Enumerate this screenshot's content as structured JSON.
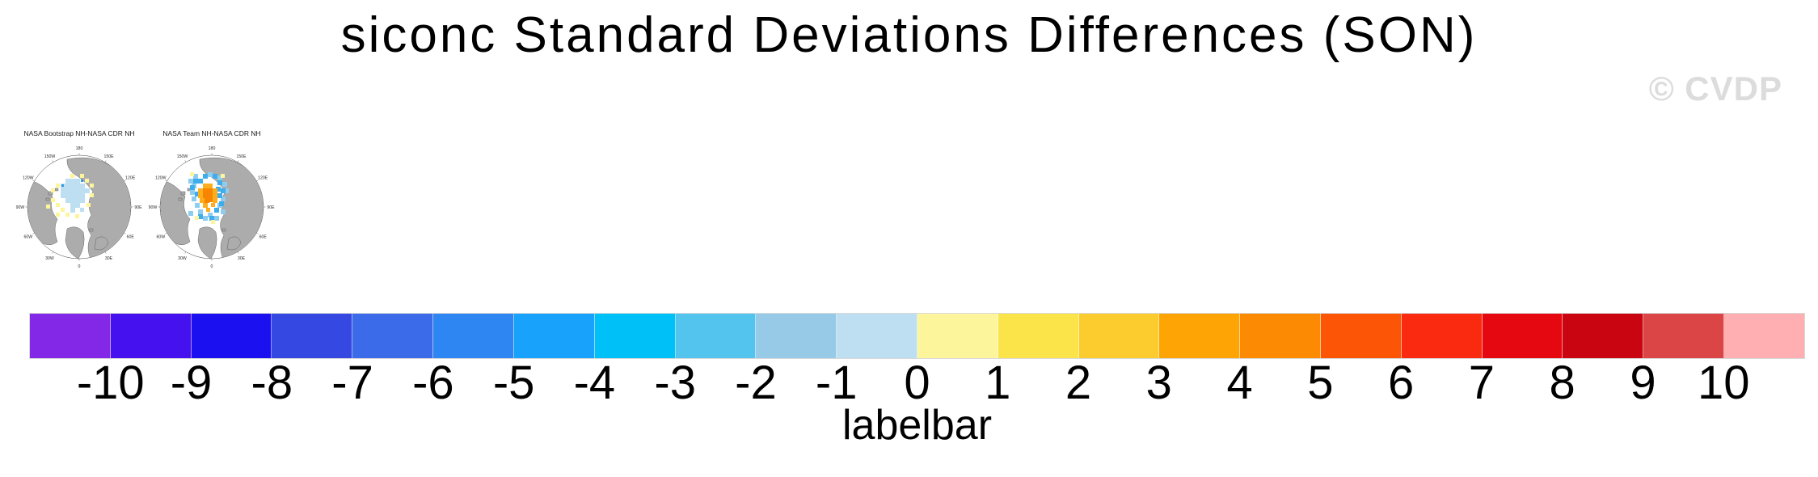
{
  "title": "siconc Standard Deviations Differences (SON)",
  "watermark": "© CVDP",
  "maps": {
    "panels": [
      {
        "title": "NASA Bootstrap NH-NASA CDR NH"
      },
      {
        "title": "NASA Team NH-NASA CDR NH"
      }
    ],
    "lon_labels": [
      "180",
      "150E",
      "120E",
      "90E",
      "60E",
      "30E",
      "0",
      "30W",
      "60W",
      "90W",
      "120W",
      "150W"
    ],
    "land_color": "#acacac",
    "ocean_color": "#ffffff"
  },
  "colorbar": {
    "axis_label": "labelbar",
    "tick_labels": [
      "-10",
      "-9",
      "-8",
      "-7",
      "-6",
      "-5",
      "-4",
      "-3",
      "-2",
      "-1",
      "0",
      "1",
      "2",
      "3",
      "4",
      "5",
      "6",
      "7",
      "8",
      "9",
      "10"
    ],
    "colors": [
      "#8428E8",
      "#4611EF",
      "#1A10F0",
      "#3548E2",
      "#3B6BE8",
      "#2E86F2",
      "#18A2FB",
      "#00C0F8",
      "#52C4EE",
      "#96CAE6",
      "#BEDFF2",
      "#FCF59C",
      "#FBE34A",
      "#FCCB2D",
      "#FFA405",
      "#FC8A02",
      "#FB5505",
      "#F92A10",
      "#E60810",
      "#C80510",
      "#DC4545",
      "#FFAEB2"
    ]
  },
  "chart_data": {
    "type": "heatmap",
    "title": "siconc Standard Deviations Differences (SON)",
    "panels": [
      "NASA Bootstrap NH-NASA CDR NH",
      "NASA Team NH-NASA CDR NH"
    ],
    "projection": "northern hemisphere polar stereographic",
    "colorbar_label": "labelbar",
    "colorbar_levels": [
      -10,
      -9,
      -8,
      -7,
      -6,
      -5,
      -4,
      -3,
      -2,
      -1,
      0,
      1,
      2,
      3,
      4,
      5,
      6,
      7,
      8,
      9,
      10
    ],
    "colorbar_colors": [
      "#8428E8",
      "#4611EF",
      "#1A10F0",
      "#3548E2",
      "#3B6BE8",
      "#2E86F2",
      "#18A2FB",
      "#00C0F8",
      "#52C4EE",
      "#96CAE6",
      "#BEDFF2",
      "#FCF59C",
      "#FBE34A",
      "#FCCB2D",
      "#FFA405",
      "#FC8A02",
      "#FB5505",
      "#F92A10",
      "#E60810",
      "#C80510",
      "#DC4545",
      "#FFAEB2"
    ],
    "legend_position": "bottom",
    "notes": "Panel 1 shows weak negative (pale blue) differences over the central Arctic with scattered weak positive (pale yellow) patches; Panel 2 shows stronger negative (blue) differences around the pole with a positive (orange, ~3-5) region near the pole."
  }
}
